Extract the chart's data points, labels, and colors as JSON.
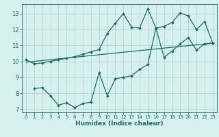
{
  "xlabel": "Humidex (Indice chaleur)",
  "xlim": [
    -0.5,
    23.5
  ],
  "ylim": [
    6.8,
    13.6
  ],
  "yticks": [
    7,
    8,
    9,
    10,
    11,
    12,
    13
  ],
  "xticks": [
    0,
    1,
    2,
    3,
    4,
    5,
    6,
    7,
    8,
    9,
    10,
    11,
    12,
    13,
    14,
    15,
    16,
    17,
    18,
    19,
    20,
    21,
    22,
    23
  ],
  "bg_color": "#d6f0ee",
  "grid_color": "#b0d8d0",
  "line_color": "#1a6b5a",
  "line1_x": [
    0,
    1,
    2,
    3,
    4,
    5,
    6,
    7,
    8,
    9,
    10,
    11,
    12,
    13,
    14,
    15,
    16,
    17,
    18,
    19,
    20,
    21,
    22,
    23
  ],
  "line1_y": [
    10.1,
    9.85,
    9.9,
    10.0,
    10.1,
    10.2,
    10.3,
    10.45,
    10.6,
    10.75,
    11.75,
    12.4,
    13.0,
    12.15,
    12.1,
    13.3,
    12.1,
    12.2,
    12.45,
    13.05,
    12.85,
    12.0,
    12.5,
    11.15
  ],
  "line2_x": [
    1,
    2,
    3,
    4,
    5,
    6,
    7,
    8,
    9,
    10,
    11,
    12,
    13,
    14,
    15,
    16,
    17,
    18,
    19,
    20,
    21,
    22,
    23
  ],
  "line2_y": [
    8.3,
    8.35,
    7.85,
    7.25,
    7.4,
    7.1,
    7.35,
    7.45,
    9.3,
    7.85,
    8.9,
    9.0,
    9.1,
    9.5,
    9.8,
    12.1,
    10.25,
    10.65,
    11.1,
    11.5,
    10.7,
    11.1,
    11.15
  ],
  "line3_x": [
    0,
    23
  ],
  "line3_y": [
    9.95,
    11.15
  ]
}
